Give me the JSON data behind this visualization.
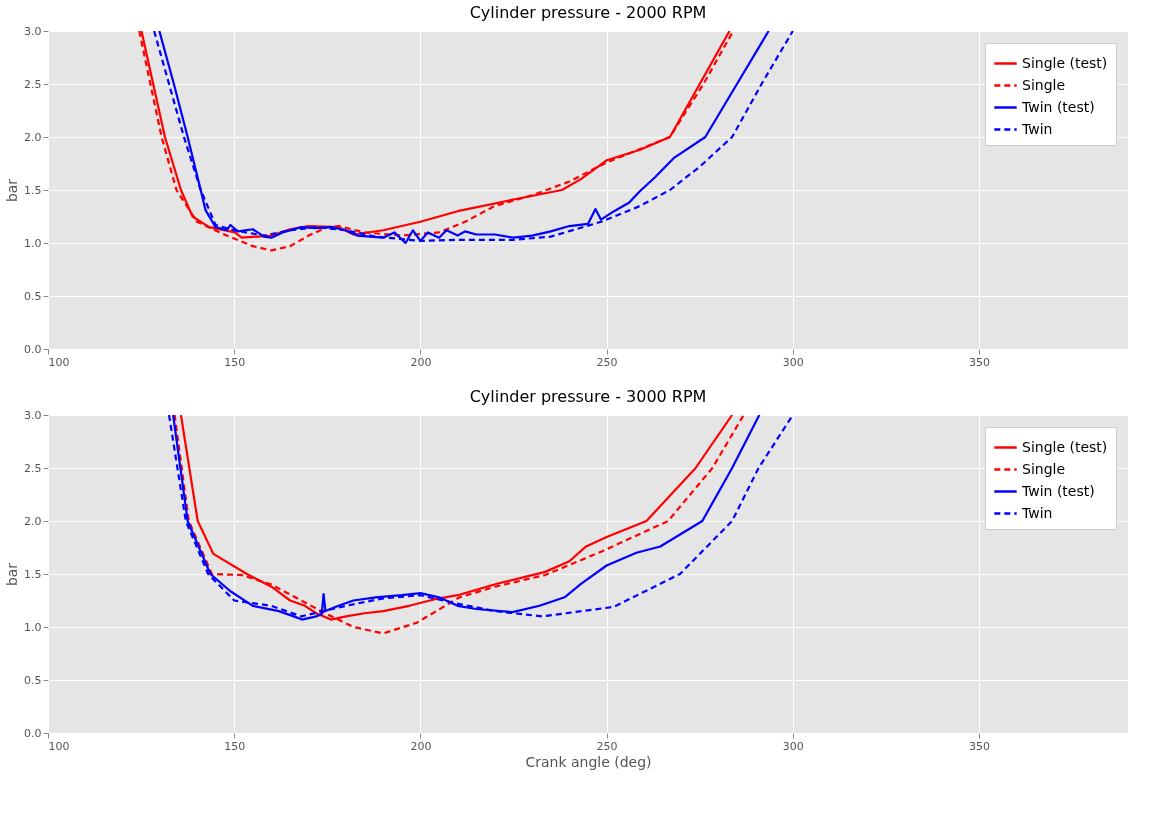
{
  "chart_data": [
    {
      "type": "line",
      "title": "Cylinder pressure - 2000 RPM",
      "ylabel": "bar",
      "xlim": [
        100,
        390
      ],
      "xticks": [
        100,
        150,
        200,
        250,
        300,
        350
      ],
      "ylim": [
        0,
        3
      ],
      "yticks": [
        {
          "value": 0,
          "label": "0.0"
        },
        {
          "value": 0.5,
          "label": "0.5"
        },
        {
          "value": 1,
          "label": "1.0"
        },
        {
          "value": 1.5,
          "label": "1.5"
        },
        {
          "value": 2,
          "label": "2.0"
        },
        {
          "value": 2.5,
          "label": "2.5"
        },
        {
          "value": 3,
          "label": "3.0"
        }
      ],
      "grid": true,
      "legend": "top right",
      "series": [
        {
          "name": "Single (test)",
          "color": "#ff0000",
          "line_style": "solid",
          "x": [
            125.1,
            131.4,
            135.7,
            138.8,
            143.3,
            150.2,
            152,
            160,
            165,
            170,
            178,
            182,
            190,
            200,
            210,
            225,
            238,
            243,
            250,
            259,
            267,
            275,
            283
          ],
          "values": [
            3.0,
            2.0,
            1.5,
            1.25,
            1.15,
            1.1,
            1.05,
            1.07,
            1.13,
            1.16,
            1.15,
            1.08,
            1.12,
            1.2,
            1.3,
            1.41,
            1.5,
            1.6,
            1.78,
            1.88,
            2.0,
            2.5,
            3.0
          ]
        },
        {
          "name": "Single",
          "color": "#ff0000",
          "line_style": "dashed",
          "x": [
            124.5,
            130.5,
            134.5,
            140,
            148,
            155,
            160,
            165,
            170,
            175,
            178,
            185,
            195,
            205,
            212,
            220,
            230,
            240,
            250,
            260,
            267,
            276,
            284
          ],
          "values": [
            3.0,
            2.0,
            1.5,
            1.2,
            1.07,
            0.97,
            0.93,
            0.97,
            1.07,
            1.15,
            1.16,
            1.1,
            1.07,
            1.1,
            1.2,
            1.35,
            1.45,
            1.58,
            1.76,
            1.9,
            2.0,
            2.5,
            3.0
          ]
        },
        {
          "name": "Twin (test)",
          "color": "#0000ff",
          "line_style": "solid",
          "x": [
            129.9,
            133.8,
            137.5,
            141,
            142.3,
            145,
            148,
            149,
            151,
            155,
            158,
            160,
            163,
            168,
            172,
            176,
            180,
            183,
            190,
            193,
            196,
            198,
            200,
            202,
            205,
            207,
            210,
            212,
            215,
            220,
            225,
            230,
            235,
            240,
            245,
            247,
            248.5,
            252,
            256,
            259,
            263,
            268,
            276.5,
            285,
            293.5
          ],
          "values": [
            3.0,
            2.5,
            2.0,
            1.5,
            1.31,
            1.15,
            1.12,
            1.17,
            1.11,
            1.13,
            1.06,
            1.05,
            1.1,
            1.15,
            1.14,
            1.15,
            1.12,
            1.07,
            1.05,
            1.1,
            1.0,
            1.12,
            1.02,
            1.1,
            1.05,
            1.12,
            1.07,
            1.11,
            1.08,
            1.08,
            1.05,
            1.07,
            1.11,
            1.16,
            1.18,
            1.32,
            1.22,
            1.3,
            1.38,
            1.49,
            1.62,
            1.8,
            2.0,
            2.5,
            3.0
          ]
        },
        {
          "name": "Twin",
          "color": "#0000ff",
          "line_style": "dashed",
          "x": [
            128.5,
            132.5,
            136.5,
            141,
            145,
            150,
            158,
            165,
            172,
            180,
            188,
            200,
            210,
            225,
            235,
            248.5,
            259,
            267,
            275,
            283.7,
            291.6,
            300
          ],
          "values": [
            3.0,
            2.5,
            2.0,
            1.5,
            1.17,
            1.12,
            1.07,
            1.12,
            1.15,
            1.12,
            1.06,
            1.02,
            1.03,
            1.03,
            1.06,
            1.2,
            1.35,
            1.5,
            1.72,
            2.0,
            2.5,
            3.0
          ]
        }
      ]
    },
    {
      "type": "line",
      "title": "Cylinder pressure - 3000 RPM",
      "xlabel": "Crank angle (deg)",
      "ylabel": "bar",
      "xlim": [
        100,
        390
      ],
      "xticks": [
        100,
        150,
        200,
        250,
        300,
        350
      ],
      "ylim": [
        0,
        3
      ],
      "yticks": [
        {
          "value": 0,
          "label": "0.0"
        },
        {
          "value": 0.5,
          "label": "0.5"
        },
        {
          "value": 1,
          "label": "1.0"
        },
        {
          "value": 1.5,
          "label": "1.5"
        },
        {
          "value": 2,
          "label": "2.0"
        },
        {
          "value": 2.5,
          "label": "2.5"
        },
        {
          "value": 3,
          "label": "3.0"
        }
      ],
      "grid": true,
      "legend": "top right",
      "series": [
        {
          "name": "Single (test)",
          "color": "#ff0000",
          "line_style": "solid",
          "x": [
            135.7,
            140.2,
            144.4,
            153.4,
            160,
            165,
            169,
            172,
            176,
            180,
            185,
            190,
            197,
            203.6,
            210,
            220.8,
            233.5,
            240,
            244.5,
            250,
            260.7,
            273.9,
            283.7
          ],
          "values": [
            3.0,
            2.0,
            1.69,
            1.5,
            1.38,
            1.25,
            1.2,
            1.13,
            1.07,
            1.1,
            1.13,
            1.15,
            1.2,
            1.26,
            1.3,
            1.41,
            1.52,
            1.62,
            1.76,
            1.85,
            2.0,
            2.5,
            3.0
          ]
        },
        {
          "name": "Single",
          "color": "#ff0000",
          "line_style": "dashed",
          "x": [
            134,
            137.8,
            144,
            152,
            160,
            168,
            175,
            182,
            190,
            199,
            210.5,
            220,
            233.5,
            248.5,
            266.5,
            278.4,
            286.8
          ],
          "values": [
            3.0,
            2.0,
            1.5,
            1.49,
            1.4,
            1.25,
            1.12,
            1.0,
            0.94,
            1.04,
            1.28,
            1.38,
            1.49,
            1.71,
            2.0,
            2.5,
            3.0
          ]
        },
        {
          "name": "Twin (test)",
          "color": "#0000ff",
          "line_style": "solid",
          "x": [
            133.6,
            137.5,
            143.6,
            148.9,
            155,
            162,
            166,
            168.2,
            172,
            173.5,
            174,
            174.5,
            178,
            182,
            188,
            195,
            200,
            205,
            210,
            215,
            224.7,
            232,
            238.7,
            243.2,
            250,
            258,
            264.4,
            275.7,
            283.7,
            291
          ],
          "values": [
            3.0,
            2.0,
            1.5,
            1.34,
            1.2,
            1.15,
            1.1,
            1.07,
            1.1,
            1.12,
            1.31,
            1.15,
            1.2,
            1.25,
            1.28,
            1.3,
            1.32,
            1.28,
            1.2,
            1.17,
            1.14,
            1.2,
            1.28,
            1.41,
            1.58,
            1.7,
            1.76,
            2.0,
            2.5,
            3.0
          ]
        },
        {
          "name": "Twin",
          "color": "#0000ff",
          "line_style": "dashed",
          "x": [
            132.5,
            137,
            143,
            150,
            160,
            168,
            180,
            190,
            200,
            210,
            220,
            232.7,
            251.9,
            269.7,
            283.7,
            290.8,
            300
          ],
          "values": [
            3.0,
            2.0,
            1.5,
            1.25,
            1.2,
            1.1,
            1.2,
            1.27,
            1.3,
            1.22,
            1.15,
            1.1,
            1.19,
            1.5,
            2.0,
            2.5,
            3.0
          ]
        }
      ]
    }
  ]
}
